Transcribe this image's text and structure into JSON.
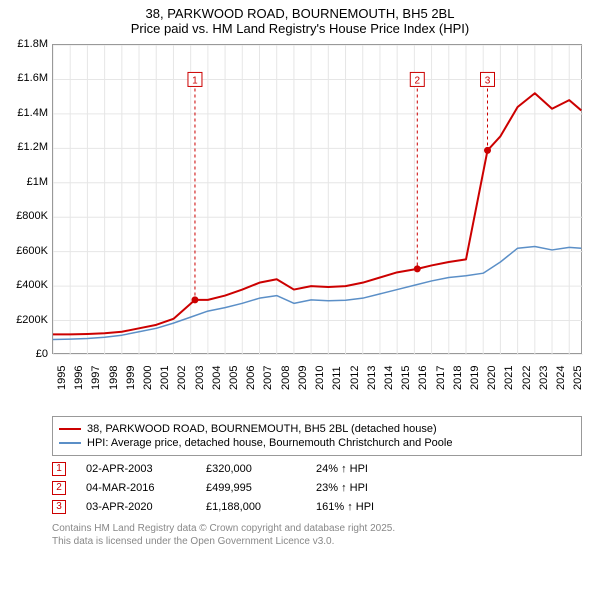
{
  "title": {
    "line1": "38, PARKWOOD ROAD, BOURNEMOUTH, BH5 2BL",
    "line2": "Price paid vs. HM Land Registry's House Price Index (HPI)"
  },
  "chart": {
    "type": "line",
    "background_color": "#ffffff",
    "border_color": "#999999",
    "gridline_color": "#e6e6e6",
    "x_min": 1995,
    "x_max": 2025.8,
    "y_min": 0,
    "y_max": 1800000,
    "y_ticks": [
      0,
      200000,
      400000,
      600000,
      800000,
      1000000,
      1200000,
      1400000,
      1600000,
      1800000
    ],
    "y_tick_labels": [
      "£0",
      "£200K",
      "£400K",
      "£600K",
      "£800K",
      "£1M",
      "£1.2M",
      "£1.4M",
      "£1.6M",
      "£1.8M"
    ],
    "x_ticks": [
      1995,
      1996,
      1997,
      1998,
      1999,
      2000,
      2001,
      2002,
      2003,
      2004,
      2005,
      2006,
      2007,
      2008,
      2009,
      2010,
      2011,
      2012,
      2013,
      2014,
      2015,
      2016,
      2017,
      2018,
      2019,
      2020,
      2021,
      2022,
      2023,
      2024,
      2025
    ],
    "x_tick_labels": [
      "1995",
      "1996",
      "1997",
      "1998",
      "1999",
      "2000",
      "2001",
      "2002",
      "2003",
      "2004",
      "2005",
      "2006",
      "2007",
      "2008",
      "2009",
      "2010",
      "2011",
      "2012",
      "2013",
      "2014",
      "2015",
      "2016",
      "2017",
      "2018",
      "2019",
      "2020",
      "2021",
      "2022",
      "2023",
      "2024",
      "2025"
    ],
    "y_tick_font_size": 11,
    "x_tick_font_size": 11,
    "series": [
      {
        "id": "price_paid",
        "label": "38, PARKWOOD ROAD, BOURNEMOUTH, BH5 2BL (detached house)",
        "color": "#cc0000",
        "line_width": 2,
        "points": [
          [
            1995.0,
            120000
          ],
          [
            1996.0,
            120000
          ],
          [
            1997.0,
            122000
          ],
          [
            1998.0,
            126000
          ],
          [
            1999.0,
            135000
          ],
          [
            2000.0,
            155000
          ],
          [
            2001.0,
            175000
          ],
          [
            2002.0,
            210000
          ],
          [
            2003.25,
            320000
          ],
          [
            2004.0,
            320000
          ],
          [
            2005.0,
            345000
          ],
          [
            2006.0,
            380000
          ],
          [
            2007.0,
            420000
          ],
          [
            2008.0,
            440000
          ],
          [
            2009.0,
            380000
          ],
          [
            2010.0,
            400000
          ],
          [
            2011.0,
            395000
          ],
          [
            2012.0,
            400000
          ],
          [
            2013.0,
            420000
          ],
          [
            2014.0,
            450000
          ],
          [
            2015.0,
            480000
          ],
          [
            2016.17,
            499995
          ],
          [
            2017.0,
            520000
          ],
          [
            2018.0,
            540000
          ],
          [
            2019.0,
            555000
          ],
          [
            2020.25,
            1188000
          ],
          [
            2021.0,
            1270000
          ],
          [
            2022.0,
            1440000
          ],
          [
            2023.0,
            1520000
          ],
          [
            2024.0,
            1430000
          ],
          [
            2025.0,
            1480000
          ],
          [
            2025.7,
            1420000
          ]
        ],
        "markers": [
          {
            "num": "1",
            "x": 2003.25,
            "y": 320000,
            "label_y": 1600000
          },
          {
            "num": "2",
            "x": 2016.17,
            "y": 499995,
            "label_y": 1600000
          },
          {
            "num": "3",
            "x": 2020.25,
            "y": 1188000,
            "label_y": 1600000
          }
        ],
        "marker_color": "#cc0000",
        "marker_box_border": "#cc0000",
        "marker_box_text": "#cc0000"
      },
      {
        "id": "hpi",
        "label": "HPI: Average price, detached house, Bournemouth Christchurch and Poole",
        "color": "#5b8fc7",
        "line_width": 1.5,
        "points": [
          [
            1995.0,
            90000
          ],
          [
            1996.0,
            92000
          ],
          [
            1997.0,
            96000
          ],
          [
            1998.0,
            103000
          ],
          [
            1999.0,
            115000
          ],
          [
            2000.0,
            135000
          ],
          [
            2001.0,
            155000
          ],
          [
            2002.0,
            185000
          ],
          [
            2003.0,
            220000
          ],
          [
            2004.0,
            255000
          ],
          [
            2005.0,
            275000
          ],
          [
            2006.0,
            300000
          ],
          [
            2007.0,
            330000
          ],
          [
            2008.0,
            345000
          ],
          [
            2009.0,
            300000
          ],
          [
            2010.0,
            320000
          ],
          [
            2011.0,
            315000
          ],
          [
            2012.0,
            318000
          ],
          [
            2013.0,
            330000
          ],
          [
            2014.0,
            355000
          ],
          [
            2015.0,
            380000
          ],
          [
            2016.0,
            405000
          ],
          [
            2017.0,
            430000
          ],
          [
            2018.0,
            450000
          ],
          [
            2019.0,
            460000
          ],
          [
            2020.0,
            475000
          ],
          [
            2021.0,
            540000
          ],
          [
            2022.0,
            620000
          ],
          [
            2023.0,
            630000
          ],
          [
            2024.0,
            610000
          ],
          [
            2025.0,
            625000
          ],
          [
            2025.7,
            620000
          ]
        ]
      }
    ]
  },
  "legend": {
    "border_color": "#999999",
    "items": [
      {
        "color": "#cc0000",
        "width": 2,
        "label": "38, PARKWOOD ROAD, BOURNEMOUTH, BH5 2BL (detached house)"
      },
      {
        "color": "#5b8fc7",
        "width": 1.5,
        "label": "HPI: Average price, detached house, Bournemouth Christchurch and Poole"
      }
    ]
  },
  "transactions": [
    {
      "num": "1",
      "date": "02-APR-2003",
      "price": "£320,000",
      "diff": "24% ↑ HPI"
    },
    {
      "num": "2",
      "date": "04-MAR-2016",
      "price": "£499,995",
      "diff": "23% ↑ HPI"
    },
    {
      "num": "3",
      "date": "03-APR-2020",
      "price": "£1,188,000",
      "diff": "161% ↑ HPI"
    }
  ],
  "transaction_marker_color": "#cc0000",
  "footer": {
    "line1": "Contains HM Land Registry data © Crown copyright and database right 2025.",
    "line2": "This data is licensed under the Open Government Licence v3.0.",
    "color": "#888888"
  }
}
